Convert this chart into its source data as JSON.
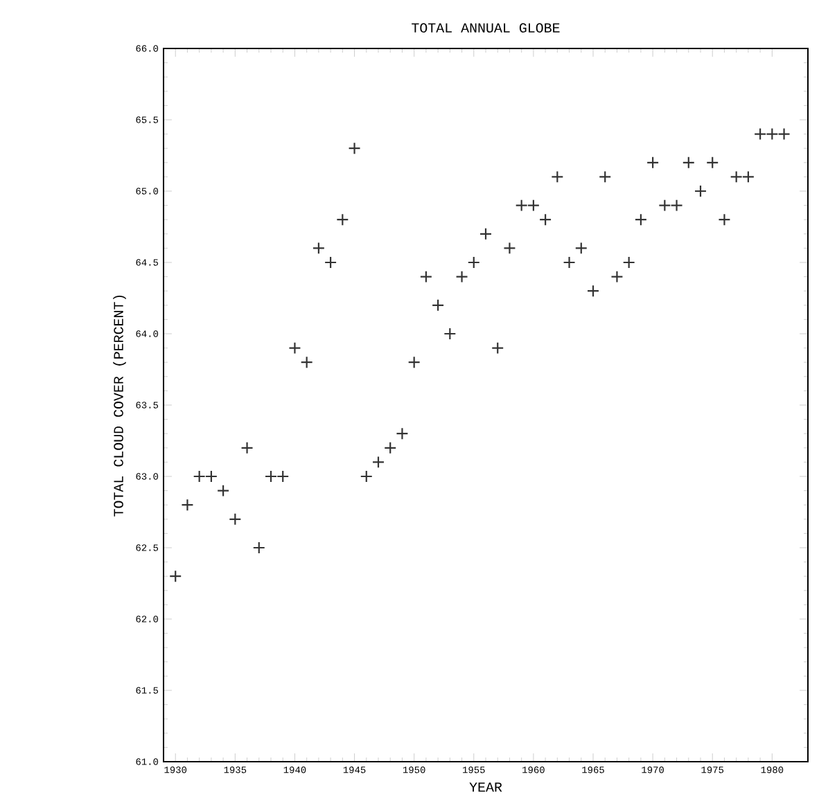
{
  "chart_data": {
    "type": "scatter",
    "title": "TOTAL ANNUAL GLOBE",
    "xlabel": "YEAR",
    "ylabel": "TOTAL CLOUD COVER (PERCENT)",
    "x": [
      1930,
      1931,
      1932,
      1933,
      1934,
      1935,
      1936,
      1937,
      1938,
      1939,
      1940,
      1941,
      1942,
      1943,
      1944,
      1945,
      1946,
      1947,
      1948,
      1949,
      1950,
      1951,
      1952,
      1953,
      1954,
      1955,
      1956,
      1957,
      1958,
      1959,
      1960,
      1961,
      1962,
      1963,
      1964,
      1965,
      1966,
      1967,
      1968,
      1969,
      1970,
      1971,
      1972,
      1973,
      1974,
      1975,
      1976,
      1977,
      1978,
      1979,
      1980,
      1981
    ],
    "values": [
      62.3,
      62.8,
      63.0,
      63.0,
      62.9,
      62.7,
      63.2,
      62.5,
      63.0,
      63.0,
      63.9,
      63.8,
      64.6,
      64.5,
      64.8,
      65.3,
      63.0,
      63.1,
      63.2,
      63.3,
      63.8,
      64.4,
      64.2,
      64.0,
      64.4,
      64.5,
      64.7,
      63.9,
      64.6,
      64.9,
      64.9,
      64.8,
      65.1,
      64.5,
      64.6,
      64.3,
      65.1,
      64.4,
      64.5,
      64.8,
      65.2,
      64.9,
      64.9,
      65.2,
      65.0,
      65.2,
      64.8,
      65.1,
      65.1,
      65.4,
      65.4,
      65.4
    ],
    "color": "#333333",
    "marker": "cross",
    "xlim": [
      1929,
      1983
    ],
    "xticks": [
      1930,
      1935,
      1940,
      1945,
      1950,
      1955,
      1960,
      1965,
      1970,
      1975,
      1980
    ],
    "ylim": [
      61,
      66
    ],
    "yticks": [
      {
        "value": 61,
        "label": "61.0"
      },
      61.5,
      {
        "value": 62,
        "label": "62.0"
      },
      62.5,
      {
        "value": 63,
        "label": "63.0"
      },
      63.5,
      {
        "value": 64,
        "label": "64.0"
      },
      64.5,
      {
        "value": 65,
        "label": "65.0"
      },
      65.5,
      {
        "value": 66,
        "label": "66.0"
      }
    ]
  }
}
